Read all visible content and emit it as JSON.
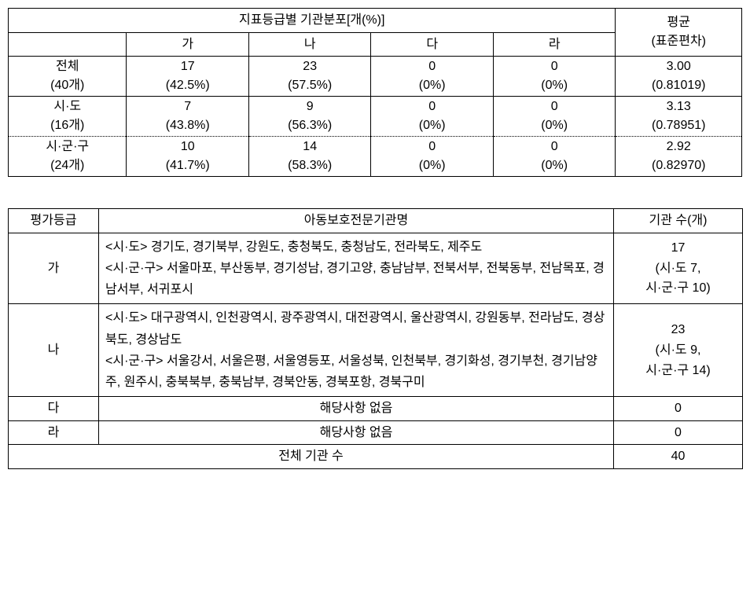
{
  "table1": {
    "header1": "지표등급별 기관분포[개(%)]",
    "header2": "평균",
    "header2_sub": "(표준편차)",
    "cols": {
      "b": "가",
      "c": "나",
      "d": "다",
      "e": "라"
    },
    "rows": [
      {
        "label1": "전체",
        "label2": "(40개)",
        "b1": "17",
        "b2": "(42.5%)",
        "c1": "23",
        "c2": "(57.5%)",
        "d1": "0",
        "d2": "(0%)",
        "e1": "0",
        "e2": "(0%)",
        "avg1": "3.00",
        "avg2": "(0.81019)"
      },
      {
        "label1": "시·도",
        "label2": "(16개)",
        "b1": "7",
        "b2": "(43.8%)",
        "c1": "9",
        "c2": "(56.3%)",
        "d1": "0",
        "d2": "(0%)",
        "e1": "0",
        "e2": "(0%)",
        "avg1": "3.13",
        "avg2": "(0.78951)"
      },
      {
        "label1": "시·군·구",
        "label2": "(24개)",
        "b1": "10",
        "b2": "(41.7%)",
        "c1": "14",
        "c2": "(58.3%)",
        "d1": "0",
        "d2": "(0%)",
        "e1": "0",
        "e2": "(0%)",
        "avg1": "2.92",
        "avg2": "(0.82970)"
      }
    ]
  },
  "table2": {
    "headers": {
      "grade": "평가등급",
      "desc": "아동보호전문기관명",
      "count": "기관 수(개)"
    },
    "rows": [
      {
        "grade": "가",
        "desc": "<시·도> 경기도, 경기북부, 강원도, 충청북도, 충청남도, 전라북도, 제주도\n<시·군·구> 서울마포, 부산동부, 경기성남, 경기고양, 충남남부, 전북서부, 전북동부, 전남목포, 경남서부, 서귀포시",
        "count": "17\n(시·도 7,\n시·군·구 10)"
      },
      {
        "grade": "나",
        "desc": "<시·도> 대구광역시, 인천광역시, 광주광역시, 대전광역시, 울산광역시, 강원동부, 전라남도, 경상북도, 경상남도\n<시·군·구> 서울강서, 서울은평, 서울영등포, 서울성북, 인천북부, 경기화성, 경기부천, 경기남양주, 원주시, 충북북부, 충북남부, 경북안동, 경북포항, 경북구미",
        "count": "23\n(시·도 9,\n시·군·구 14)"
      },
      {
        "grade": "다",
        "desc_center": "해당사항 없음",
        "count": "0"
      },
      {
        "grade": "라",
        "desc_center": "해당사항 없음",
        "count": "0"
      }
    ],
    "total_label": "전체 기관 수",
    "total_count": "40"
  }
}
